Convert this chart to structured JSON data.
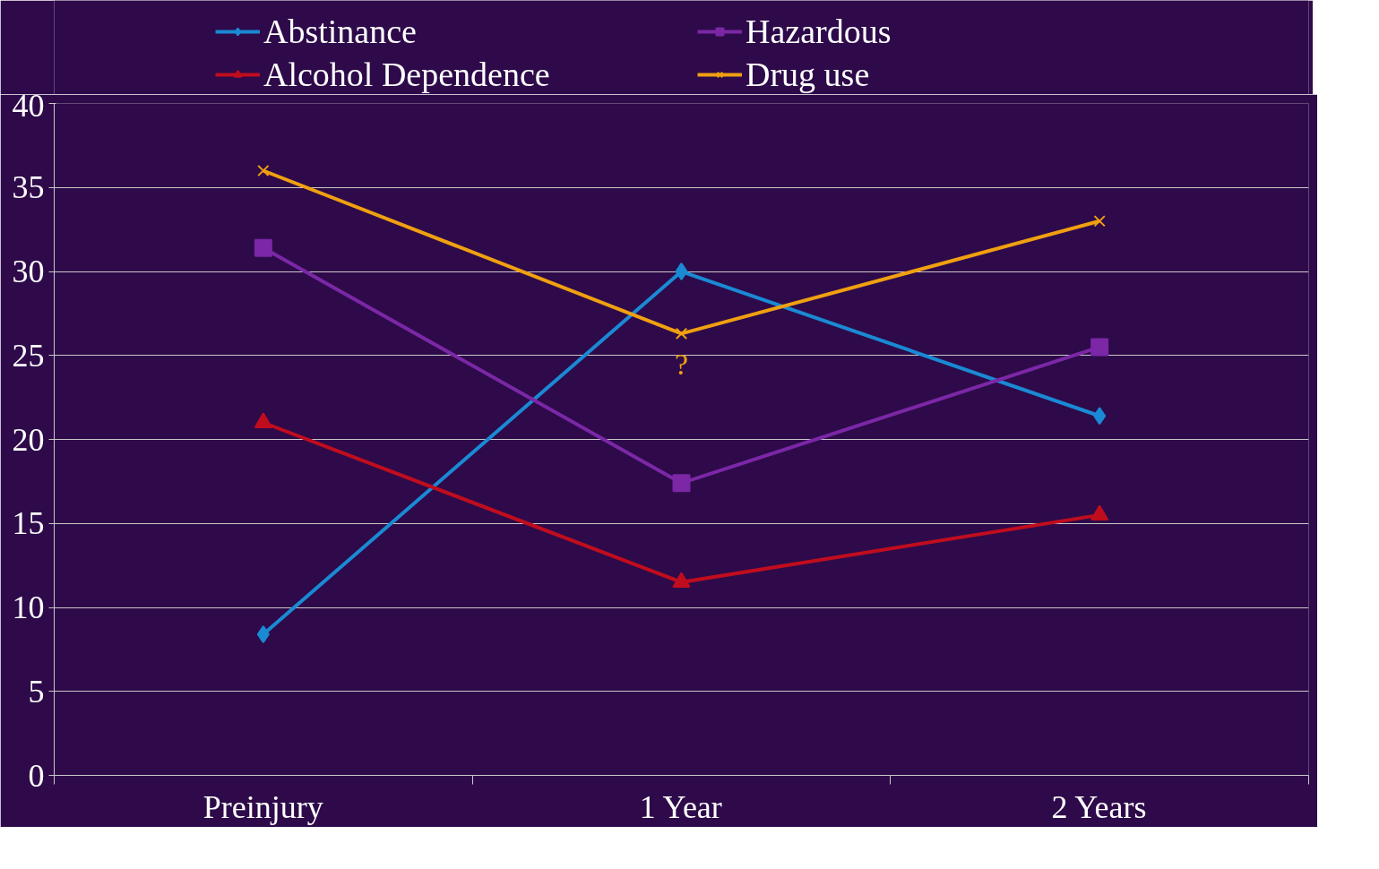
{
  "chart_data": {
    "type": "line",
    "categories": [
      "Preinjury",
      "1 Year",
      "2 Years"
    ],
    "series": [
      {
        "name": "Abstinance",
        "color": "#1a8ad4",
        "marker": "diamond",
        "values": [
          8.4,
          30.0,
          21.4
        ]
      },
      {
        "name": "Hazardous",
        "color": "#7b27a6",
        "marker": "square",
        "values": [
          31.4,
          17.4,
          25.5
        ]
      },
      {
        "name": "Alcohol Dependence",
        "color": "#c00d1e",
        "marker": "triangle",
        "values": [
          21.0,
          11.5,
          15.5
        ]
      },
      {
        "name": "Drug use",
        "color": "#f0a010",
        "marker": "cross",
        "values": [
          36.0,
          26.3,
          33.0
        ]
      }
    ],
    "ylim": [
      0,
      40
    ],
    "yticks": [
      0,
      5,
      10,
      15,
      20,
      25,
      30,
      35,
      40
    ],
    "grid": "y",
    "legend": "top",
    "annotations": [
      {
        "text": "?",
        "x": "1 Year",
        "y": 26.3
      }
    ]
  }
}
